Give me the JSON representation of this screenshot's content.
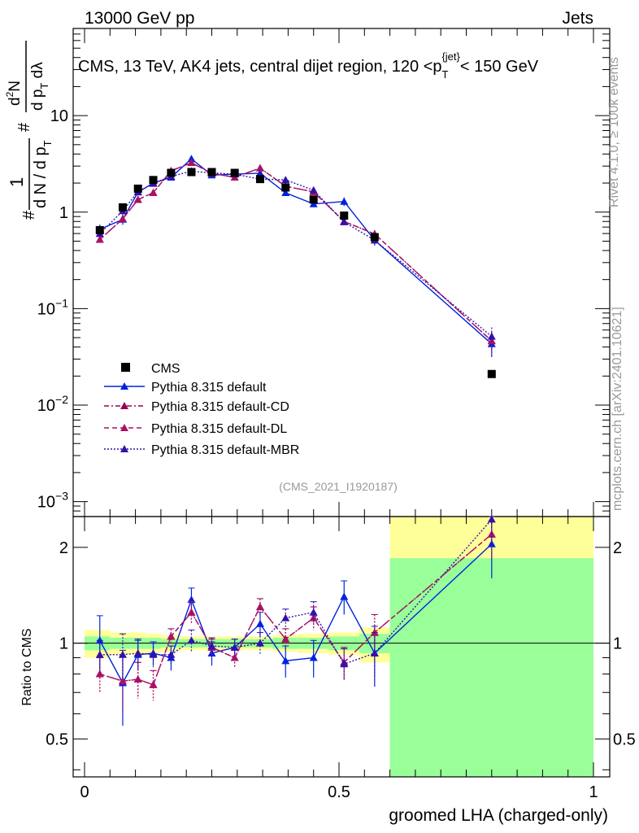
{
  "header": {
    "left": "13000 GeV pp",
    "right": "Jets"
  },
  "title": "CMS, 13 TeV, AK4 jets, central dijet region, 120 <p",
  "title_sub": "T",
  "title_sup": "{jet}",
  "title_end": "< 150 GeV",
  "ylabel": {
    "a": "1",
    "b": "d N / d p",
    "b_sub": "T",
    "c": "d",
    "c_sup": "2",
    "c_end": "N",
    "d": "d p",
    "d_sub": "T",
    "d_end": " d",
    "lambda": "λ",
    "hash": "#"
  },
  "side_label_top": "Rivet 4.1.0, ≥ 100k events",
  "side_label_bottom": "mcplots.cern.ch [arXiv:2401.10621]",
  "analysis_id": "(CMS_2021_I1920187)",
  "xlabel": "groomed LHA (charged-only)",
  "ratio_ylabel": "Ratio to CMS",
  "upper_ticks": [
    {
      "label": "10",
      "sup": "−3",
      "v": 0.001
    },
    {
      "label": "10",
      "sup": "−2",
      "v": 0.01
    },
    {
      "label": "10",
      "sup": "−1",
      "v": 0.1
    },
    {
      "label": "1",
      "sup": "",
      "v": 1
    },
    {
      "label": "10",
      "sup": "",
      "v": 10
    }
  ],
  "ratio_ticks": [
    {
      "label": "0.5",
      "v": 0.5
    },
    {
      "label": "1",
      "v": 1
    },
    {
      "label": "2",
      "v": 2
    }
  ],
  "x_ticks": [
    {
      "label": "0",
      "v": 0
    },
    {
      "label": "0.5",
      "v": 0.5
    },
    {
      "label": "1",
      "v": 1
    }
  ],
  "chart_data": {
    "type": "scatter",
    "xlim": [
      -0.02,
      1.02
    ],
    "ylim_log": [
      0.0007,
      80
    ],
    "ratio_ylim": [
      0.38,
      2.5
    ],
    "x": [
      0.03,
      0.075,
      0.105,
      0.135,
      0.17,
      0.21,
      0.25,
      0.295,
      0.345,
      0.395,
      0.45,
      0.51,
      0.57,
      0.8
    ],
    "data": {
      "name": "CMS",
      "values": [
        0.65,
        1.12,
        1.75,
        2.15,
        2.55,
        2.6,
        2.6,
        2.55,
        2.2,
        1.8,
        1.35,
        0.92,
        0.55,
        0.021
      ]
    },
    "band_yellow": [
      {
        "x0": 0,
        "x1": 0.05,
        "lo": 0.9,
        "hi": 1.1
      },
      {
        "x0": 0.05,
        "x1": 0.09,
        "lo": 0.92,
        "hi": 1.08
      },
      {
        "x0": 0.09,
        "x1": 0.12,
        "lo": 0.92,
        "hi": 1.08
      },
      {
        "x0": 0.12,
        "x1": 0.15,
        "lo": 0.93,
        "hi": 1.07
      },
      {
        "x0": 0.15,
        "x1": 0.19,
        "lo": 0.94,
        "hi": 1.06
      },
      {
        "x0": 0.19,
        "x1": 0.23,
        "lo": 0.95,
        "hi": 1.05
      },
      {
        "x0": 0.23,
        "x1": 0.27,
        "lo": 0.95,
        "hi": 1.05
      },
      {
        "x0": 0.27,
        "x1": 0.32,
        "lo": 0.95,
        "hi": 1.05
      },
      {
        "x0": 0.32,
        "x1": 0.37,
        "lo": 0.95,
        "hi": 1.05
      },
      {
        "x0": 0.37,
        "x1": 0.42,
        "lo": 0.94,
        "hi": 1.06
      },
      {
        "x0": 0.42,
        "x1": 0.48,
        "lo": 0.93,
        "hi": 1.07
      },
      {
        "x0": 0.48,
        "x1": 0.54,
        "lo": 0.92,
        "hi": 1.08
      },
      {
        "x0": 0.54,
        "x1": 0.6,
        "lo": 0.87,
        "hi": 1.12
      },
      {
        "x0": 0.6,
        "x1": 1.0,
        "lo": 0.38,
        "hi": 2.5
      }
    ],
    "band_green": [
      {
        "x0": 0,
        "x1": 0.05,
        "lo": 0.95,
        "hi": 1.05
      },
      {
        "x0": 0.05,
        "x1": 0.09,
        "lo": 0.96,
        "hi": 1.04
      },
      {
        "x0": 0.09,
        "x1": 0.12,
        "lo": 0.96,
        "hi": 1.04
      },
      {
        "x0": 0.12,
        "x1": 0.15,
        "lo": 0.96,
        "hi": 1.04
      },
      {
        "x0": 0.15,
        "x1": 0.19,
        "lo": 0.97,
        "hi": 1.03
      },
      {
        "x0": 0.19,
        "x1": 0.23,
        "lo": 0.97,
        "hi": 1.03
      },
      {
        "x0": 0.23,
        "x1": 0.27,
        "lo": 0.97,
        "hi": 1.03
      },
      {
        "x0": 0.27,
        "x1": 0.32,
        "lo": 0.97,
        "hi": 1.03
      },
      {
        "x0": 0.32,
        "x1": 0.37,
        "lo": 0.97,
        "hi": 1.03
      },
      {
        "x0": 0.37,
        "x1": 0.42,
        "lo": 0.96,
        "hi": 1.04
      },
      {
        "x0": 0.42,
        "x1": 0.48,
        "lo": 0.96,
        "hi": 1.04
      },
      {
        "x0": 0.48,
        "x1": 0.54,
        "lo": 0.95,
        "hi": 1.05
      },
      {
        "x0": 0.54,
        "x1": 0.6,
        "lo": 0.93,
        "hi": 1.07
      },
      {
        "x0": 0.6,
        "x1": 1.0,
        "lo": 0.38,
        "hi": 1.85
      }
    ],
    "series": [
      {
        "name": "Pythia 8.315 default",
        "color": "#0022dd",
        "dash": "",
        "ratio": [
          1.02,
          0.75,
          0.92,
          0.93,
          0.9,
          1.37,
          0.93,
          0.97,
          1.15,
          0.88,
          0.9,
          1.4,
          0.93,
          2.05
        ],
        "err": [
          0.2,
          0.2,
          0.1,
          0.08,
          0.08,
          0.12,
          0.08,
          0.06,
          0.1,
          0.1,
          0.12,
          0.17,
          0.2,
          0.45
        ]
      },
      {
        "name": "Pythia 8.315 default-CD",
        "color": "#990055",
        "dash": "6,3,2,3",
        "ratio": [
          0.8,
          0.76,
          0.77,
          0.74,
          1.05,
          1.25,
          0.97,
          0.9,
          1.3,
          1.03,
          1.2,
          0.87,
          1.08,
          2.2
        ],
        "err": [
          0.1,
          0.15,
          0.1,
          0.08,
          0.06,
          0.1,
          0.06,
          0.06,
          0.08,
          0.08,
          0.1,
          0.1,
          0.15,
          0.4
        ]
      },
      {
        "name": "Pythia 8.315 default-DL",
        "color": "#aa1166",
        "dash": "6,4",
        "ratio": [
          0.8,
          0.76,
          0.77,
          0.74,
          1.05,
          1.25,
          0.97,
          0.9,
          1.3,
          1.03,
          1.2,
          0.87,
          1.08,
          2.2
        ],
        "err": [
          0.1,
          0.15,
          0.1,
          0.08,
          0.06,
          0.1,
          0.06,
          0.06,
          0.08,
          0.08,
          0.1,
          0.1,
          0.15,
          0.4
        ]
      },
      {
        "name": "Pythia 8.315 default-MBR",
        "color": "#3311aa",
        "dash": "2,2",
        "ratio": [
          0.92,
          0.92,
          0.93,
          0.92,
          0.92,
          1.02,
          0.98,
          0.97,
          1.0,
          1.2,
          1.25,
          0.86,
          0.93,
          2.45
        ],
        "err": [
          0.1,
          0.15,
          0.1,
          0.08,
          0.06,
          0.08,
          0.06,
          0.06,
          0.08,
          0.08,
          0.1,
          0.1,
          0.15,
          0.4
        ]
      }
    ]
  },
  "legend_entries": [
    "CMS",
    "Pythia 8.315 default",
    "Pythia 8.315 default-CD",
    "Pythia 8.315 default-DL",
    "Pythia 8.315 default-MBR"
  ]
}
